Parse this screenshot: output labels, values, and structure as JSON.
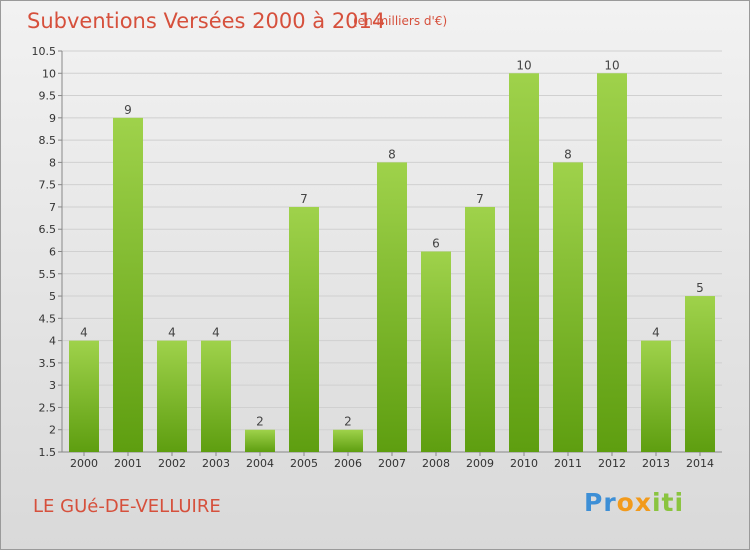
{
  "header": {
    "title": "Subventions Versées 2000 à 2014",
    "subtitle": "(en milliers d'€)"
  },
  "footer": {
    "commune": "LE GUé-DE-VELLUIRE",
    "logo_text": "Proxiti"
  },
  "colors": {
    "bar_light": "#9fd24b",
    "bar_dark": "#5e9e10",
    "title": "#d6503c"
  },
  "chart_data": {
    "type": "bar",
    "title": "Subventions Versées 2000 à 2014",
    "subtitle": "(en milliers d'€)",
    "xlabel": "",
    "ylabel": "",
    "categories": [
      "2000",
      "2001",
      "2002",
      "2003",
      "2004",
      "2005",
      "2006",
      "2007",
      "2008",
      "2009",
      "2010",
      "2011",
      "2012",
      "2013",
      "2014"
    ],
    "values": [
      4,
      9,
      4,
      4,
      2,
      7,
      2,
      8,
      6,
      7,
      10,
      8,
      10,
      4,
      5
    ],
    "ylim": [
      1.5,
      10.5
    ],
    "yticks": [
      "1.5",
      "2",
      "2.5",
      "3",
      "3.5",
      "4",
      "4.5",
      "5",
      "5.5",
      "6",
      "6.5",
      "7",
      "7.5",
      "8",
      "8.5",
      "9",
      "9.5",
      "10",
      "10.5"
    ],
    "grid": true
  }
}
